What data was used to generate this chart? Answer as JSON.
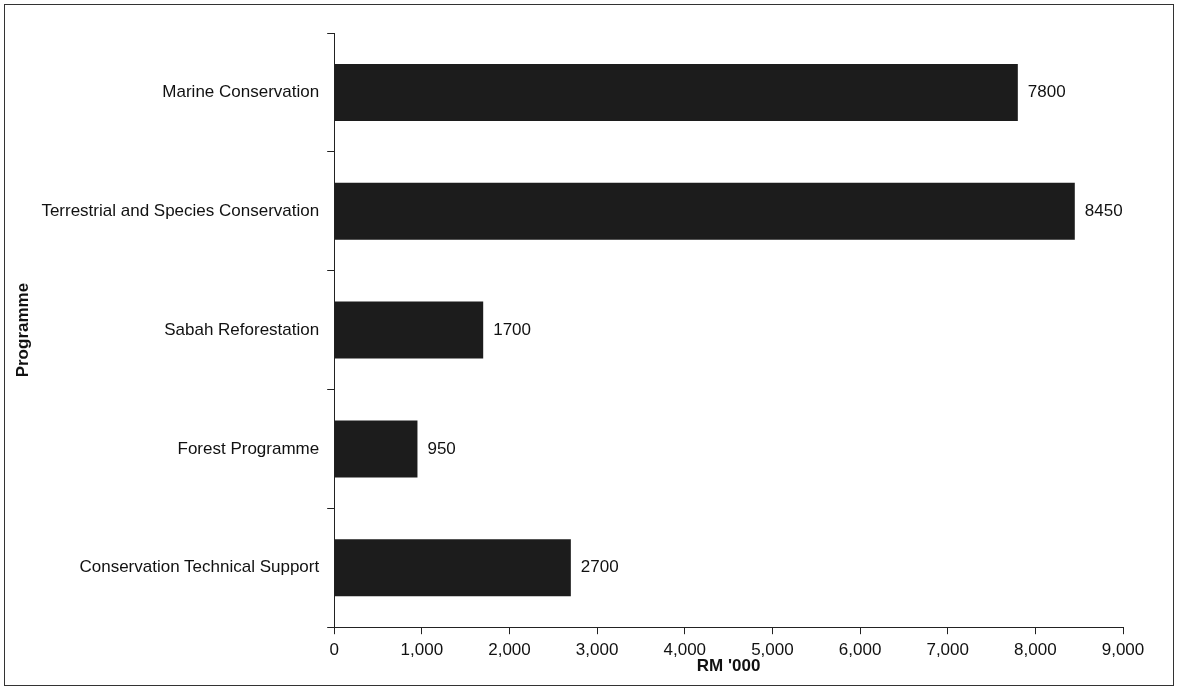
{
  "chart_data": {
    "type": "bar",
    "orientation": "horizontal",
    "categories": [
      "Marine Conservation",
      "Terrestrial and Species Conservation",
      "Sabah Reforestation",
      "Forest Programme",
      "Conservation Technical Support"
    ],
    "values": [
      7800,
      8450,
      1700,
      950,
      2700
    ],
    "color": "#1c1c1c",
    "xlabel": "RM '000",
    "ylabel": "Programme",
    "xlim": [
      0,
      9000
    ],
    "xticks": [
      0,
      {
        "value": 1000,
        "label": "1,000"
      },
      {
        "value": 2000,
        "label": "2,000"
      },
      {
        "value": 3000,
        "label": "3,000"
      },
      {
        "value": 4000,
        "label": "4,000"
      },
      {
        "value": 5000,
        "label": "5,000"
      },
      {
        "value": 6000,
        "label": "6,000"
      },
      {
        "value": 7000,
        "label": "7,000"
      },
      {
        "value": 8000,
        "label": "8,000"
      },
      {
        "value": 9000,
        "label": "9,000"
      }
    ],
    "data_labels": true,
    "grid": false,
    "legend": false
  }
}
